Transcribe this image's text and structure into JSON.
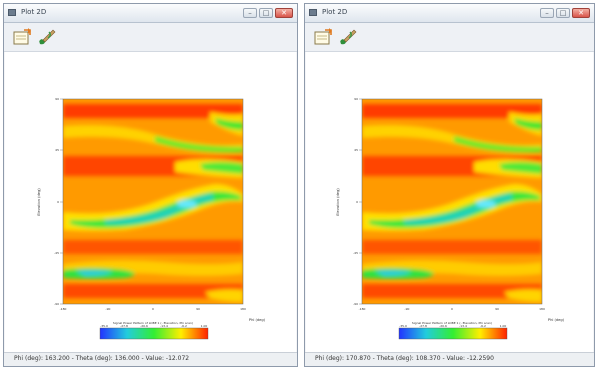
{
  "windows": [
    {
      "title": "Plot 2D",
      "buttons": {
        "minimize": "–",
        "maximize": "□",
        "close": "✕"
      },
      "toolbar": {
        "icons": [
          "notepad-icon",
          "paintbrush-icon"
        ]
      },
      "plot": {
        "y_label": "Elevation (deg)",
        "x_label": "Phi (deg)",
        "x_ticks": [
          "-180",
          "-90",
          "0",
          "90",
          "180"
        ],
        "y_ticks": [
          "90",
          "45",
          "0",
          "-45",
          "-90"
        ],
        "colorbar_title": "Signal Power Pattern of LOBE 1 (- Elevation, Phi scan)",
        "colorbar_ticks": [
          "-35.0",
          "-27.8",
          "-20.6",
          "-13.4",
          "-6.2",
          "1.00"
        ]
      },
      "status": "Phi (deg): 163.200 - Theta (deg): 136.000 - Value: -12.072"
    },
    {
      "title": "Plot 2D",
      "buttons": {
        "minimize": "–",
        "maximize": "□",
        "close": "✕"
      },
      "toolbar": {
        "icons": [
          "notepad-icon",
          "paintbrush-icon"
        ]
      },
      "plot": {
        "y_label": "Elevation (deg)",
        "x_label": "Phi (deg)",
        "x_ticks": [
          "-180",
          "-90",
          "0",
          "90",
          "180"
        ],
        "y_ticks": [
          "90",
          "45",
          "0",
          "-45",
          "-90"
        ],
        "colorbar_title": "Signal Power Pattern of LOBE 1 (- Elevation, Phi scan)",
        "colorbar_ticks": [
          "-35.0",
          "-27.8",
          "-20.6",
          "-13.4",
          "-6.2",
          "1.00"
        ]
      },
      "status": "Phi (deg): 170.870 - Theta (deg): 108.370 - Value: -12.2590"
    }
  ],
  "colors": {
    "heatmap_hot": "#ff3300",
    "heatmap_mid": "#ffdd00",
    "heatmap_green": "#22dd33",
    "heatmap_cyan": "#33ddcc",
    "heatmap_blue": "#2244ff"
  }
}
